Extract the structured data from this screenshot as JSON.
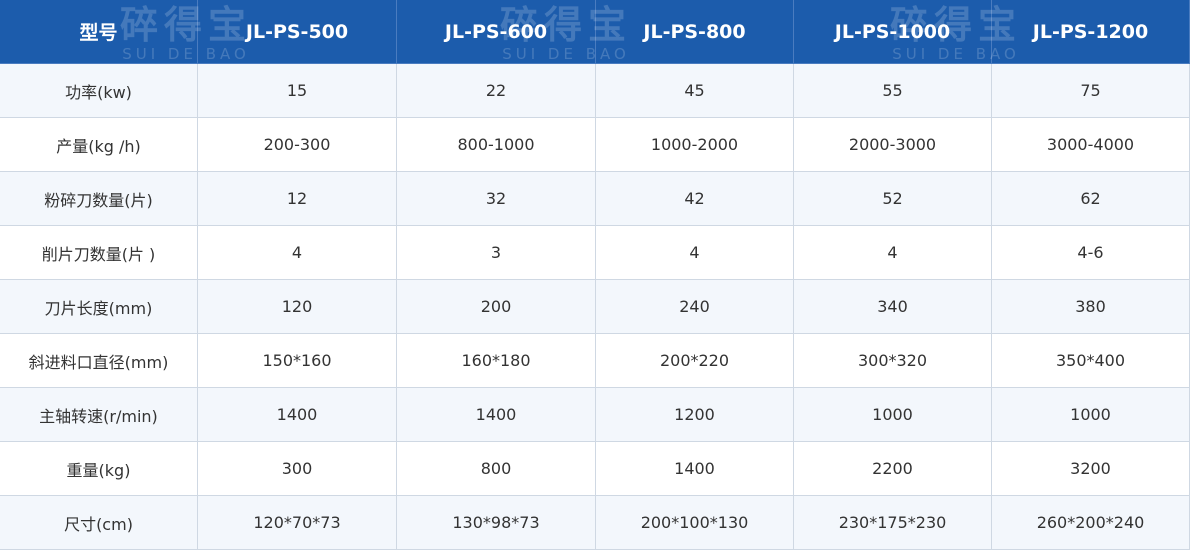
{
  "watermark": {
    "brand": "碎得宝",
    "latin": "SUI DE BAO"
  },
  "table": {
    "header": [
      "型号",
      "JL-PS-500",
      "JL-PS-600",
      "JL-PS-800",
      "JL-PS-1000",
      "JL-PS-1200"
    ],
    "rows": [
      [
        "功率(kw)",
        "15",
        "22",
        "45",
        "55",
        "75"
      ],
      [
        "产量(kg /h)",
        "200-300",
        "800-1000",
        "1000-2000",
        "2000-3000",
        "3000-4000"
      ],
      [
        "粉碎刀数量(片)",
        "12",
        "32",
        "42",
        "52",
        "62"
      ],
      [
        "削片刀数量(片 )",
        "4",
        "3",
        "4",
        "4",
        "4-6"
      ],
      [
        "刀片长度(mm)",
        "120",
        "200",
        "240",
        "340",
        "380"
      ],
      [
        "斜进料口直径(mm)",
        "150*160",
        "160*180",
        "200*220",
        "300*320",
        "350*400"
      ],
      [
        "主轴转速(r/min)",
        "1400",
        "1400",
        "1200",
        "1000",
        "1000"
      ],
      [
        "重量(kg)",
        "300",
        "800",
        "1400",
        "2200",
        "3200"
      ],
      [
        "尺寸(cm)",
        "120*70*73",
        "130*98*73",
        "200*100*130",
        "230*175*230",
        "260*200*240"
      ]
    ]
  }
}
